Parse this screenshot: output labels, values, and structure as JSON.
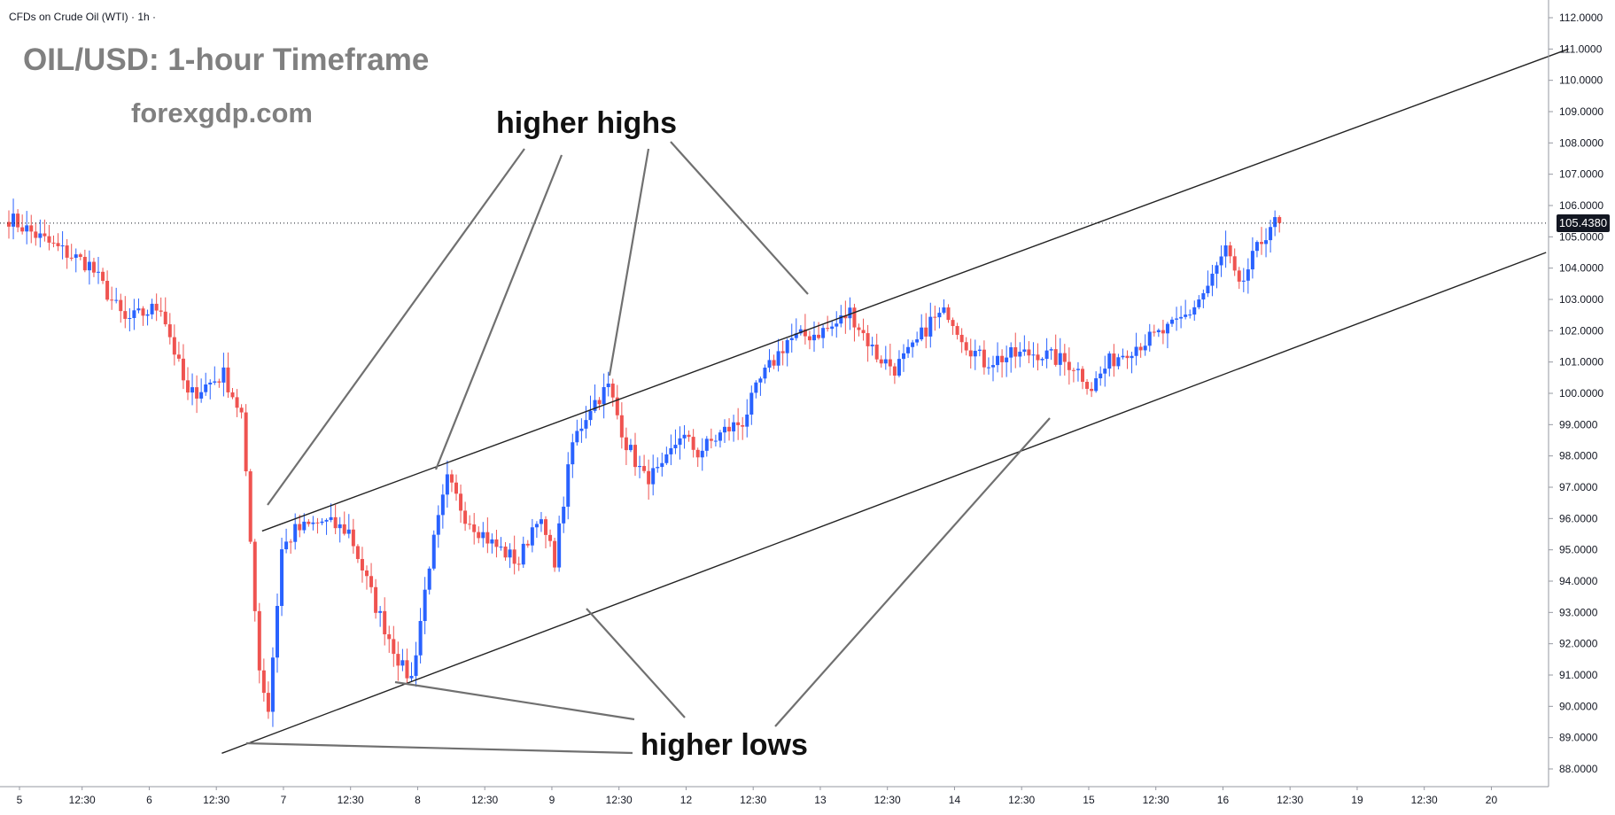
{
  "header": {
    "symbol_line": "CFDs on Crude Oil (WTI) · 1h ·",
    "title": "OIL/USD: 1-hour Timeframe",
    "site": "forexgdp.com"
  },
  "annotations": {
    "higher_highs": "higher highs",
    "higher_lows": "higher lows"
  },
  "colors": {
    "bull": "#2962ff",
    "bear": "#ef5350",
    "lines": "#222222",
    "pointers": "#707070",
    "grid": "#d1d4dc"
  },
  "chart_data": {
    "type": "candlestick",
    "title": "OIL/USD: 1-hour Timeframe",
    "symbol": "CFDs on Crude Oil (WTI)",
    "interval": "1h",
    "ylim": [
      87.5,
      112.2
    ],
    "y_ticks": [
      "112.0000",
      "111.0000",
      "110.0000",
      "109.0000",
      "108.0000",
      "107.0000",
      "106.0000",
      "105.0000",
      "104.0000",
      "103.0000",
      "102.0000",
      "101.0000",
      "100.0000",
      "99.0000",
      "98.0000",
      "97.0000",
      "96.0000",
      "95.0000",
      "94.0000",
      "93.0000",
      "92.0000",
      "91.0000",
      "90.0000",
      "89.0000",
      "88.0000"
    ],
    "x_ticks": [
      "5",
      "12:30",
      "6",
      "12:30",
      "7",
      "12:30",
      "8",
      "12:30",
      "9",
      "12:30",
      "12",
      "12:30",
      "13",
      "12:30",
      "14",
      "12:30",
      "15",
      "12:30",
      "16",
      "12:30",
      "19",
      "12:30",
      "20"
    ],
    "last_price": "105.4380",
    "anchors": [
      [
        0,
        105.6
      ],
      [
        10,
        104.7
      ],
      [
        18,
        104.1
      ],
      [
        26,
        102.3
      ],
      [
        34,
        102.8
      ],
      [
        40,
        99.9
      ],
      [
        48,
        100.6
      ],
      [
        52,
        99.3
      ],
      [
        56,
        91.2
      ],
      [
        58,
        89.9
      ],
      [
        61,
        95.0
      ],
      [
        64,
        95.6
      ],
      [
        70,
        95.9
      ],
      [
        76,
        95.6
      ],
      [
        82,
        93.2
      ],
      [
        88,
        91.2
      ],
      [
        90,
        90.9
      ],
      [
        94,
        94.6
      ],
      [
        98,
        97.2
      ],
      [
        102,
        96.1
      ],
      [
        108,
        95.2
      ],
      [
        114,
        94.6
      ],
      [
        118,
        96.1
      ],
      [
        122,
        94.7
      ],
      [
        126,
        98.4
      ],
      [
        130,
        99.6
      ],
      [
        134,
        100.2
      ],
      [
        138,
        98.4
      ],
      [
        142,
        97.3
      ],
      [
        146,
        97.5
      ],
      [
        150,
        98.7
      ],
      [
        154,
        98.1
      ],
      [
        160,
        98.8
      ],
      [
        164,
        99.1
      ],
      [
        168,
        100.4
      ],
      [
        174,
        101.7
      ],
      [
        180,
        101.9
      ],
      [
        184,
        102.1
      ],
      [
        188,
        102.6
      ],
      [
        194,
        101.2
      ],
      [
        198,
        100.8
      ],
      [
        202,
        101.4
      ],
      [
        206,
        102.3
      ],
      [
        210,
        102.6
      ],
      [
        214,
        101.6
      ],
      [
        218,
        101.0
      ],
      [
        224,
        101.2
      ],
      [
        230,
        101.3
      ],
      [
        234,
        101.1
      ],
      [
        238,
        100.9
      ],
      [
        242,
        100.2
      ],
      [
        246,
        101.0
      ],
      [
        250,
        101.4
      ],
      [
        256,
        101.8
      ],
      [
        260,
        102.1
      ],
      [
        264,
        102.6
      ],
      [
        268,
        103.4
      ],
      [
        272,
        104.6
      ],
      [
        275,
        103.3
      ],
      [
        278,
        104.3
      ],
      [
        282,
        105.4
      ],
      [
        284,
        105.44
      ]
    ],
    "trend_lines": [
      {
        "name": "upper channel",
        "x0": 57,
        "y0": 95.6,
        "x1": 349,
        "y1": 111.0
      },
      {
        "name": "lower channel",
        "x0": 48,
        "y0": 88.5,
        "x1": 344,
        "y1": 104.5
      }
    ]
  }
}
